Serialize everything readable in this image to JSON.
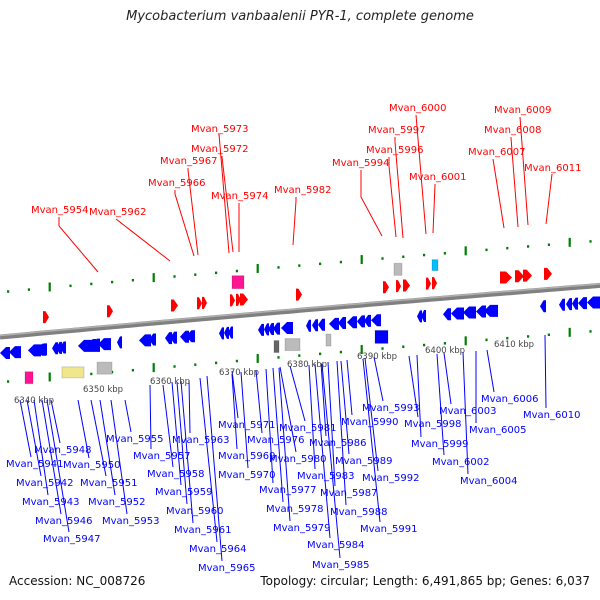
{
  "title": "Mycobacterium vanbaalenii PYR-1, complete genome",
  "footer": {
    "accession": "Accession: NC_008726",
    "summary": "Topology: circular; Length: 6,491,865 bp; Genes: 6,037"
  },
  "colors": {
    "forward": "#ff0000",
    "reverse": "#0000ff",
    "backbone": "#808080",
    "ticks": "#008000",
    "rna_pink": "#ff1493",
    "misc_grey": "#bbbbbb",
    "misc_dark": "#666666",
    "misc_yellow": "#f0e68c",
    "misc_cyan": "#00bfff"
  },
  "scale": {
    "kbp_labels": [
      "6340 kbp",
      "6350 kbp",
      "6360 kbp",
      "6370 kbp",
      "6380 kbp",
      "6390 kbp",
      "6400 kbp",
      "6410 kbp"
    ]
  },
  "top_labels": [
    {
      "name": "Mvan_5954"
    },
    {
      "name": "Mvan_5962"
    },
    {
      "name": "Mvan_5966"
    },
    {
      "name": "Mvan_5967"
    },
    {
      "name": "Mvan_5973"
    },
    {
      "name": "Mvan_5972"
    },
    {
      "name": "Mvan_5974"
    },
    {
      "name": "Mvan_5982"
    },
    {
      "name": "Mvan_5994"
    },
    {
      "name": "Mvan_5996"
    },
    {
      "name": "Mvan_5997"
    },
    {
      "name": "Mvan_6000"
    },
    {
      "name": "Mvan_6001"
    },
    {
      "name": "Mvan_6007"
    },
    {
      "name": "Mvan_6008"
    },
    {
      "name": "Mvan_6009"
    },
    {
      "name": "Mvan_6011"
    }
  ],
  "bottom_labels": [
    {
      "name": "Mvan_5941"
    },
    {
      "name": "Mvan_5942"
    },
    {
      "name": "Mvan_5943"
    },
    {
      "name": "Mvan_5946"
    },
    {
      "name": "Mvan_5947"
    },
    {
      "name": "Mvan_5948"
    },
    {
      "name": "Mvan_5950"
    },
    {
      "name": "Mvan_5951"
    },
    {
      "name": "Mvan_5952"
    },
    {
      "name": "Mvan_5953"
    },
    {
      "name": "Mvan_5955"
    },
    {
      "name": "Mvan_5957"
    },
    {
      "name": "Mvan_5958"
    },
    {
      "name": "Mvan_5959"
    },
    {
      "name": "Mvan_5960"
    },
    {
      "name": "Mvan_5961"
    },
    {
      "name": "Mvan_5963"
    },
    {
      "name": "Mvan_5964"
    },
    {
      "name": "Mvan_5965"
    },
    {
      "name": "Mvan_5969"
    },
    {
      "name": "Mvan_5970"
    },
    {
      "name": "Mvan_5971"
    },
    {
      "name": "Mvan_5976"
    },
    {
      "name": "Mvan_5977"
    },
    {
      "name": "Mvan_5978"
    },
    {
      "name": "Mvan_5979"
    },
    {
      "name": "Mvan_5980"
    },
    {
      "name": "Mvan_5981"
    },
    {
      "name": "Mvan_5983"
    },
    {
      "name": "Mvan_5984"
    },
    {
      "name": "Mvan_5985"
    },
    {
      "name": "Mvan_5986"
    },
    {
      "name": "Mvan_5987"
    },
    {
      "name": "Mvan_5988"
    },
    {
      "name": "Mvan_5989"
    },
    {
      "name": "Mvan_5990"
    },
    {
      "name": "Mvan_5991"
    },
    {
      "name": "Mvan_5992"
    },
    {
      "name": "Mvan_5993"
    },
    {
      "name": "Mvan_5998"
    },
    {
      "name": "Mvan_5999"
    },
    {
      "name": "Mvan_6002"
    },
    {
      "name": "Mvan_6003"
    },
    {
      "name": "Mvan_6004"
    },
    {
      "name": "Mvan_6005"
    },
    {
      "name": "Mvan_6006"
    },
    {
      "name": "Mvan_6010"
    }
  ]
}
